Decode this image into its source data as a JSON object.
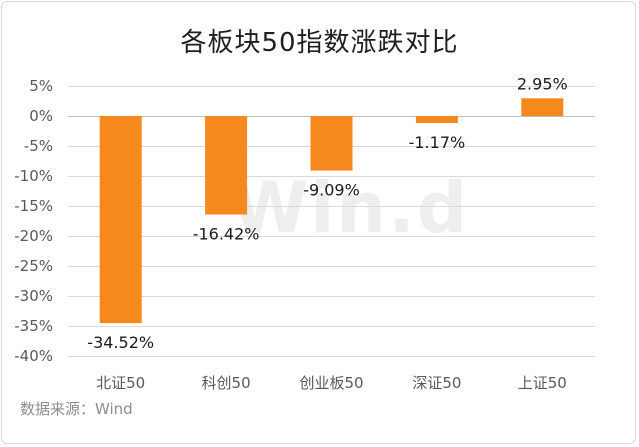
{
  "chart_data": {
    "type": "bar",
    "title": "各板块50指数涨跌对比",
    "categories": [
      "北证50",
      "科创50",
      "创业板50",
      "深证50",
      "上证50"
    ],
    "values": [
      -34.52,
      -16.42,
      -9.09,
      -1.17,
      2.95
    ],
    "data_labels": [
      "-34.52%",
      "-16.42%",
      "-9.09%",
      "-1.17%",
      "2.95%"
    ],
    "ylim": [
      -40,
      5
    ],
    "yticks": [
      5,
      0,
      -5,
      -10,
      -15,
      -20,
      -25,
      -30,
      -35,
      -40
    ],
    "ytick_labels": [
      "5%",
      "0%",
      "-5%",
      "-10%",
      "-15%",
      "-20%",
      "-25%",
      "-30%",
      "-35%",
      "-40%"
    ],
    "xlabel": "",
    "ylabel": "",
    "grid": true,
    "legend": "none",
    "bar_color": "#f5891d"
  },
  "source_text": "数据来源：Wind",
  "watermark": "Win.d"
}
